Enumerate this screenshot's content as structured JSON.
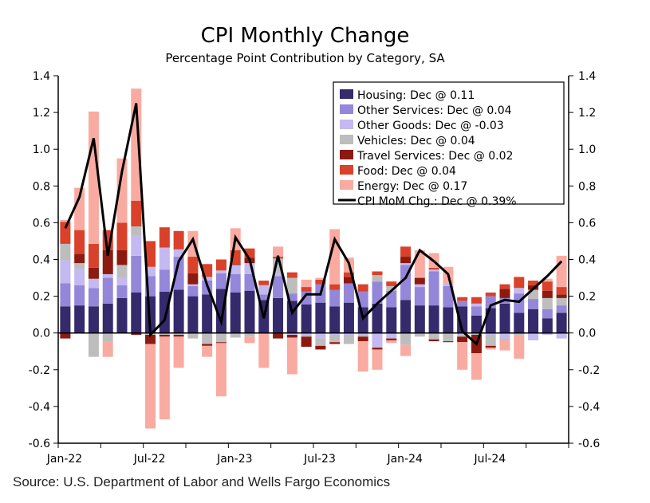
{
  "chart_data": {
    "type": "bar",
    "stacked": true,
    "title": "CPI Monthly Change",
    "subtitle": "Percentage Point Contribution by Category, SA",
    "ylim": [
      -0.6,
      1.4
    ],
    "yticks": [
      "-0.6",
      "-0.4",
      "-0.2",
      "0.0",
      "0.2",
      "0.4",
      "0.6",
      "0.8",
      "1.0",
      "1.2",
      "1.4"
    ],
    "ytick_values": [
      -0.6,
      -0.4,
      -0.2,
      0,
      0.2,
      0.4,
      0.6,
      0.8,
      1.0,
      1.2,
      1.4
    ],
    "xticks": [
      {
        "index": 0,
        "label": "Jan-22"
      },
      {
        "index": 6,
        "label": "Jul-22"
      },
      {
        "index": 12,
        "label": "Jan-23"
      },
      {
        "index": 18,
        "label": "Jul-23"
      },
      {
        "index": 24,
        "label": "Jan-24"
      },
      {
        "index": 30,
        "label": "Jul-24"
      }
    ],
    "categories": [
      "Jan-22",
      "Feb-22",
      "Mar-22",
      "Apr-22",
      "May-22",
      "Jun-22",
      "Jul-22",
      "Aug-22",
      "Sep-22",
      "Oct-22",
      "Nov-22",
      "Dec-22",
      "Jan-23",
      "Feb-23",
      "Mar-23",
      "Apr-23",
      "May-23",
      "Jun-23",
      "Jul-23",
      "Aug-23",
      "Sep-23",
      "Oct-23",
      "Nov-23",
      "Dec-23",
      "Jan-24",
      "Feb-24",
      "Mar-24",
      "Apr-24",
      "May-24",
      "Jun-24",
      "Jul-24",
      "Aug-24",
      "Sep-24",
      "Oct-24",
      "Nov-24",
      "Dec-24"
    ],
    "series": [
      {
        "name": "Housing",
        "legend": "Housing: Dec @ 0.11",
        "color": "#352a6c",
        "values": [
          0.145,
          0.15,
          0.145,
          0.16,
          0.19,
          0.22,
          0.2,
          0.225,
          0.235,
          0.2,
          0.21,
          0.24,
          0.22,
          0.23,
          0.18,
          0.19,
          0.175,
          0.155,
          0.165,
          0.145,
          0.165,
          0.14,
          0.16,
          0.14,
          0.18,
          0.15,
          0.15,
          0.14,
          0.145,
          0.095,
          0.135,
          0.16,
          0.11,
          0.13,
          0.08,
          0.11
        ]
      },
      {
        "name": "Other Services",
        "legend": "Other Services: Dec @ 0.04",
        "color": "#9487da",
        "values": [
          0.125,
          0.11,
          0.1,
          0.14,
          0.07,
          0.2,
          0.11,
          0.12,
          0.18,
          0.055,
          0.075,
          0.085,
          0.1,
          0.09,
          0.03,
          0.12,
          0.04,
          0.07,
          0.1,
          0.09,
          0.105,
          0.085,
          0.12,
          0.09,
          0.19,
          0.1,
          0.185,
          0.115,
          0.03,
          0.05,
          0.065,
          0.03,
          0.105,
          0.055,
          0.05,
          0.04
        ]
      },
      {
        "name": "Other Goods",
        "legend": "Other Goods: Dec @ -0.03",
        "color": "#c4b9f0",
        "values": [
          0.125,
          0.09,
          0.05,
          0.02,
          0.04,
          0.11,
          0.05,
          0.12,
          0.04,
          0.01,
          0.02,
          0.015,
          0.05,
          0.06,
          0.05,
          0.015,
          -0.01,
          -0.01,
          -0.03,
          -0.01,
          -0.01,
          -0.01,
          -0.08,
          -0.03,
          0.01,
          0.015,
          0.01,
          0.015,
          -0.01,
          0.015,
          -0.01,
          -0.03,
          0.03,
          -0.04,
          -0.01,
          -0.03
        ]
      },
      {
        "name": "Vehicles",
        "legend": "Vehicles: Dec @ 0.04",
        "color": "#bdbdbd",
        "values": [
          0.09,
          0.03,
          -0.13,
          -0.045,
          0.07,
          0.05,
          -0.01,
          -0.01,
          -0.01,
          -0.03,
          -0.06,
          -0.05,
          -0.025,
          -0.02,
          0.0,
          0.08,
          0.085,
          -0.01,
          -0.04,
          -0.04,
          -0.05,
          -0.01,
          0.035,
          0.025,
          -0.065,
          -0.02,
          -0.035,
          -0.045,
          -0.01,
          -0.01,
          -0.06,
          -0.01,
          -0.01,
          0.05,
          0.06,
          0.04
        ]
      },
      {
        "name": "Travel Services",
        "legend": "Travel Services: Dec @ 0.02",
        "color": "#8c1a10",
        "values": [
          -0.03,
          0.05,
          0.06,
          0.13,
          0.08,
          -0.01,
          -0.05,
          -0.01,
          -0.01,
          0.06,
          -0.01,
          -0.005,
          0.005,
          0.03,
          0.0,
          -0.03,
          -0.015,
          -0.055,
          -0.02,
          -0.01,
          0.035,
          -0.025,
          -0.01,
          -0.01,
          0.035,
          0.035,
          -0.01,
          -0.005,
          -0.03,
          -0.1,
          -0.01,
          0.05,
          0.0,
          0.025,
          0.04,
          0.02
        ]
      },
      {
        "name": "Food",
        "legend": "Food: Dec @ 0.04",
        "color": "#d9412a",
        "values": [
          0.12,
          0.13,
          0.13,
          0.11,
          0.15,
          0.14,
          0.14,
          0.11,
          0.1,
          0.09,
          0.07,
          0.06,
          0.075,
          0.05,
          0.025,
          0.01,
          0.03,
          0.025,
          0.025,
          0.03,
          0.025,
          0.04,
          0.02,
          0.025,
          0.055,
          0.0,
          0.01,
          0.0,
          0.02,
          0.035,
          0.02,
          0.025,
          0.06,
          0.025,
          0.05,
          0.04
        ]
      },
      {
        "name": "Energy",
        "legend": "Energy: Dec @ 0.17",
        "color": "#f9aba1",
        "values": [
          0.01,
          0.23,
          0.72,
          -0.085,
          0.35,
          0.61,
          -0.46,
          -0.45,
          -0.17,
          0.14,
          -0.06,
          -0.29,
          0.12,
          -0.035,
          -0.19,
          0.055,
          -0.2,
          0.04,
          0.01,
          0.3,
          0.08,
          -0.165,
          -0.11,
          -0.015,
          -0.06,
          0.15,
          0.08,
          0.09,
          -0.15,
          -0.145,
          -0.01,
          -0.055,
          -0.13,
          0.0,
          0.015,
          0.17
        ]
      }
    ],
    "line": {
      "name": "CPI MoM Chg.",
      "legend": "CPI MoM Chg.: Dec @ 0.39%",
      "color": "#000000",
      "values": [
        0.57,
        0.74,
        1.06,
        0.42,
        0.88,
        1.25,
        -0.01,
        0.07,
        0.39,
        0.51,
        0.26,
        0.06,
        0.52,
        0.4,
        0.08,
        0.42,
        0.11,
        0.21,
        0.21,
        0.51,
        0.38,
        0.08,
        0.16,
        0.23,
        0.3,
        0.45,
        0.39,
        0.32,
        0.01,
        -0.06,
        0.15,
        0.18,
        0.17,
        0.24,
        0.31,
        0.39
      ]
    },
    "legend_position": "top-right",
    "grid": false
  },
  "source": "Source: U.S. Department of Labor and Wells Fargo Economics"
}
